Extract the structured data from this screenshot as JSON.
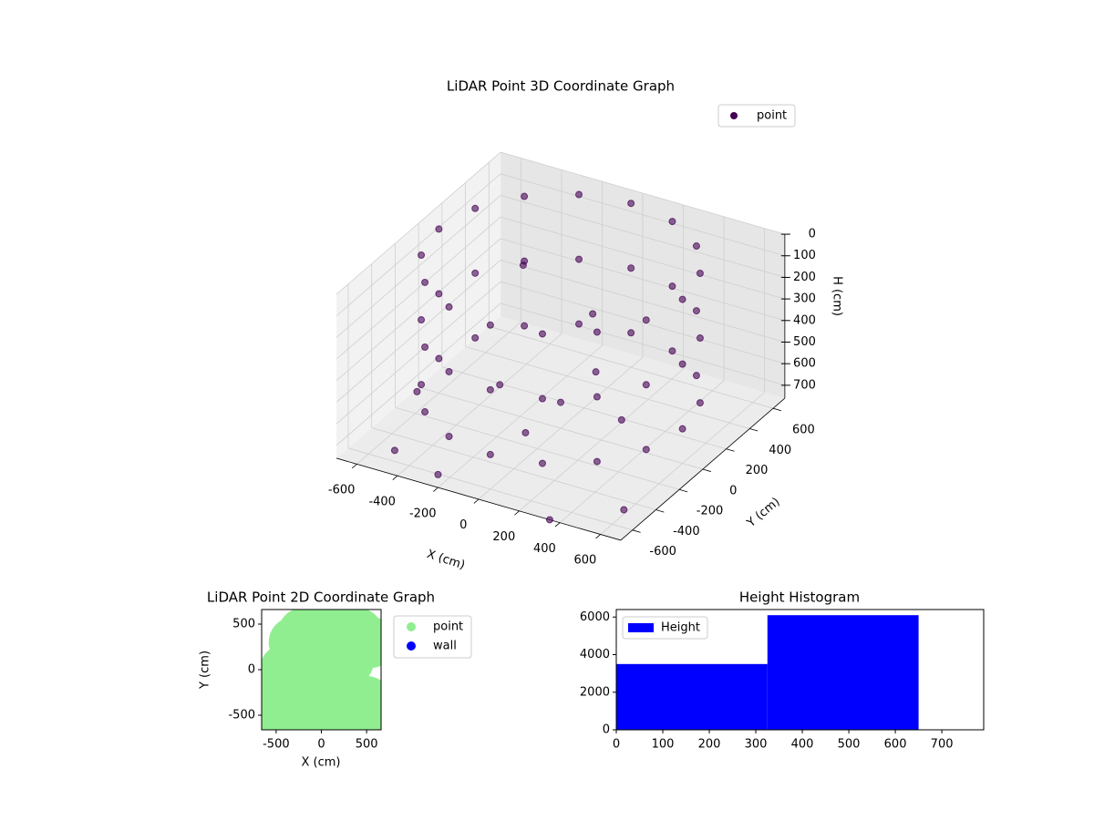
{
  "chart_data": [
    {
      "type": "scatter3d",
      "title": "LiDAR Point 3D Coordinate Graph",
      "xlabel": "X (cm)",
      "ylabel": "Y (cm)",
      "zlabel": "H (cm)",
      "xlim": [
        -700,
        700
      ],
      "ylim": [
        -700,
        700
      ],
      "zlim": [
        0,
        760
      ],
      "z_inverted": true,
      "xticks": [
        -600,
        -400,
        -200,
        0,
        200,
        400,
        600
      ],
      "yticks": [
        -600,
        -400,
        -200,
        0,
        200,
        400,
        600
      ],
      "zticks": [
        0,
        100,
        200,
        300,
        400,
        500,
        600,
        700
      ],
      "grid": true,
      "legend": "upper right",
      "series": [
        {
          "name": "point",
          "color": "#440154",
          "x": [
            600,
            554,
            424,
            230,
            0,
            -230,
            -424,
            -554,
            -600,
            -554,
            -424,
            -230,
            0,
            230,
            424,
            554,
            600,
            554,
            424,
            230,
            0,
            -230,
            -424,
            -554,
            -600,
            -554,
            -424,
            -230,
            0,
            230,
            424,
            554,
            600,
            554,
            424,
            230,
            0,
            -230,
            -424,
            -554,
            -600,
            -554,
            -424,
            -230,
            0,
            230,
            424,
            554,
            -650,
            -500,
            350,
            -200,
            600,
            -300,
            100,
            0,
            300,
            -300,
            0,
            0
          ],
          "y": [
            0,
            230,
            424,
            554,
            600,
            554,
            424,
            230,
            0,
            -230,
            -424,
            -554,
            -600,
            -554,
            -424,
            -230,
            0,
            230,
            424,
            554,
            600,
            554,
            424,
            230,
            0,
            -230,
            -424,
            -554,
            -600,
            -554,
            -424,
            -230,
            0,
            230,
            424,
            554,
            600,
            554,
            424,
            230,
            0,
            -230,
            -424,
            -554,
            -600,
            -554,
            -424,
            -230,
            -100,
            -550,
            -700,
            -700,
            -500,
            200,
            100,
            0,
            0,
            0,
            300,
            -300
          ],
          "z": [
            0,
            0,
            0,
            0,
            0,
            0,
            0,
            0,
            0,
            0,
            0,
            0,
            0,
            0,
            0,
            0,
            300,
            300,
            300,
            300,
            300,
            300,
            300,
            300,
            300,
            300,
            300,
            300,
            300,
            300,
            300,
            300,
            600,
            600,
            600,
            600,
            600,
            600,
            600,
            600,
            600,
            600,
            600,
            600,
            600,
            600,
            600,
            600,
            720,
            740,
            760,
            700,
            740,
            180,
            250,
            640,
            640,
            640,
            640,
            640
          ]
        }
      ]
    },
    {
      "type": "scatter",
      "title": "LiDAR Point 2D Coordinate Graph",
      "xlabel": "X (cm)",
      "ylabel": "Y (cm)",
      "xlim": [
        -660,
        660
      ],
      "ylim": [
        -660,
        660
      ],
      "xticks": [
        -500,
        0,
        500
      ],
      "yticks": [
        -500,
        0,
        500
      ],
      "legend": "outside right",
      "series": [
        {
          "name": "point",
          "color": "#90ee90",
          "x": [
            0,
            200,
            400,
            -300,
            -400,
            -200,
            100,
            300,
            500,
            300,
            500,
            -500,
            -200,
            0,
            200,
            -100,
            550,
            -550
          ],
          "y": [
            400,
            550,
            400,
            300,
            0,
            -200,
            200,
            100,
            -350,
            -500,
            -600,
            -600,
            400,
            0,
            -300,
            -450,
            300,
            -300
          ]
        },
        {
          "name": "wall",
          "color": "#0000ff",
          "x": [],
          "y": []
        }
      ]
    },
    {
      "type": "histogram",
      "title": "Height Histogram",
      "bins": [
        0,
        325,
        650
      ],
      "counts": [
        3500,
        6100
      ],
      "color": "#0000ff",
      "name": "Height",
      "xlim": [
        0,
        790
      ],
      "ylim": [
        0,
        6400
      ],
      "xticks": [
        0,
        100,
        200,
        300,
        400,
        500,
        600,
        700
      ],
      "yticks": [
        0,
        2000,
        4000,
        6000
      ],
      "legend": "upper left"
    }
  ]
}
